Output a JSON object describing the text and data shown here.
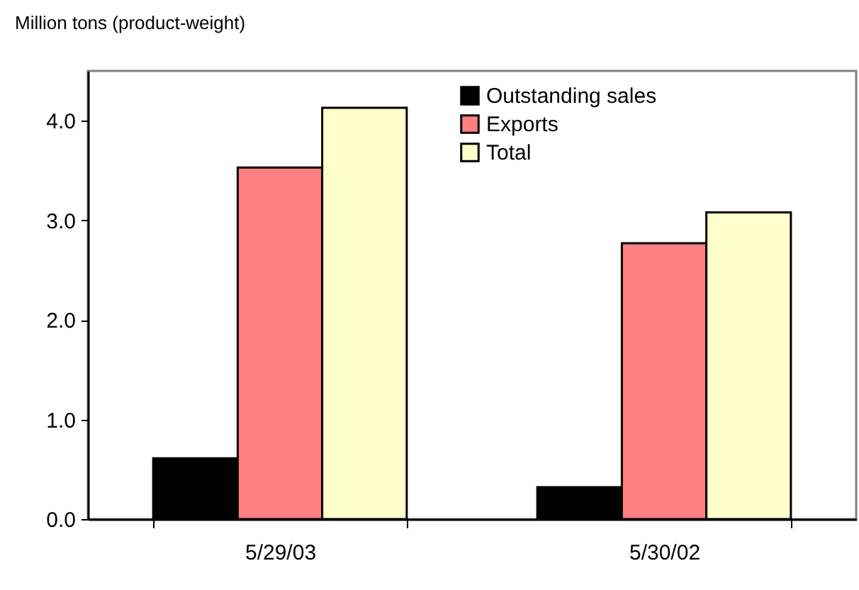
{
  "chart_data": {
    "type": "bar",
    "ylabel": "Million tons (product-weight)",
    "categories": [
      "5/29/03",
      "5/30/02"
    ],
    "series": [
      {
        "name": "Outstanding sales",
        "color": "#000000",
        "values": [
          0.61,
          0.32
        ]
      },
      {
        "name": "Exports",
        "color": "#ff8080",
        "values": [
          3.53,
          2.77
        ]
      },
      {
        "name": "Total",
        "color": "#ffffcc",
        "values": [
          4.13,
          3.08
        ]
      }
    ],
    "ylim": [
      0,
      4.5
    ],
    "yticks": [
      {
        "value": 0,
        "label": "0.0"
      },
      {
        "value": 1,
        "label": "1.0"
      },
      {
        "value": 2,
        "label": "2.0"
      },
      {
        "value": 3,
        "label": "3.0"
      },
      {
        "value": 4,
        "label": "4.0"
      }
    ],
    "grid": false,
    "legend": "top right"
  }
}
